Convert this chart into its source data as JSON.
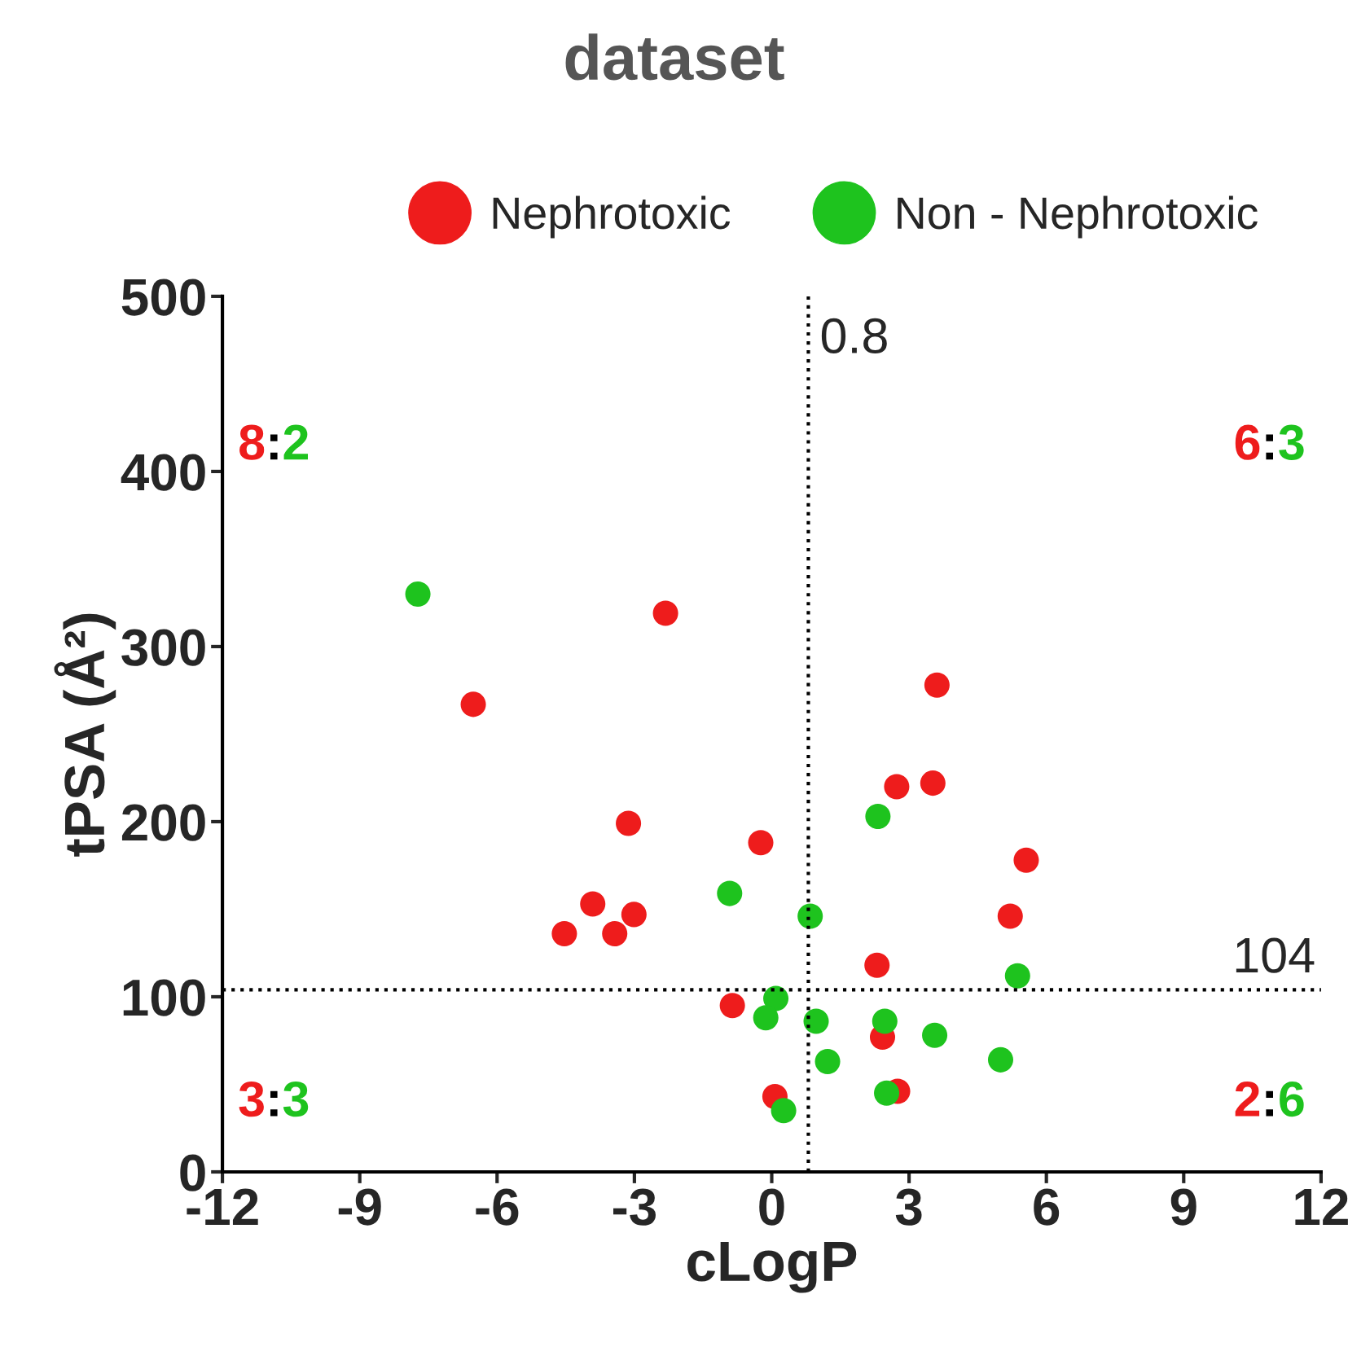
{
  "chart_data": {
    "type": "scatter",
    "title": "dataset",
    "xlabel": "cLogP",
    "ylabel": "tPSA (Å²)",
    "xlim": [
      -12,
      12
    ],
    "ylim": [
      0,
      500
    ],
    "xticks": [
      -12,
      -9,
      -6,
      -3,
      0,
      3,
      6,
      9,
      12
    ],
    "yticks": [
      0,
      100,
      200,
      300,
      400,
      500
    ],
    "grid": false,
    "legend": "top",
    "marker": "circle",
    "series": [
      {
        "name": "Nephrotoxic",
        "color": "#ee1c1c",
        "x": [
          -2.32,
          -6.52,
          -3.13,
          -3.91,
          -4.53,
          -3.43,
          -3.01,
          -0.24,
          -0.86,
          0.07,
          3.61,
          3.52,
          2.73,
          5.56,
          5.21,
          2.3,
          2.42,
          2.75
        ],
        "values": [
          319,
          267,
          199,
          153,
          136,
          136,
          147,
          188,
          95,
          43,
          278,
          222,
          220,
          178,
          146,
          118,
          77,
          46
        ]
      },
      {
        "name": "Non - Nephrotoxic",
        "color": "#1ec31e",
        "x": [
          -7.73,
          -0.92,
          0.84,
          2.32,
          5.37,
          0.09,
          -0.13,
          0.26,
          0.97,
          1.22,
          2.47,
          2.51,
          3.56,
          5.0
        ],
        "values": [
          330,
          159,
          146,
          203,
          112,
          99,
          88,
          35,
          86,
          63,
          86,
          45,
          78,
          64
        ]
      }
    ],
    "ref_lines": [
      {
        "axis": "x",
        "value": 0.8,
        "label": "0.8",
        "line_style": "dotted"
      },
      {
        "axis": "y",
        "value": 104,
        "label": "104",
        "line_style": "dotted"
      }
    ],
    "annotations": [
      "8:2",
      "6:3",
      "3:3",
      "2:6"
    ]
  }
}
